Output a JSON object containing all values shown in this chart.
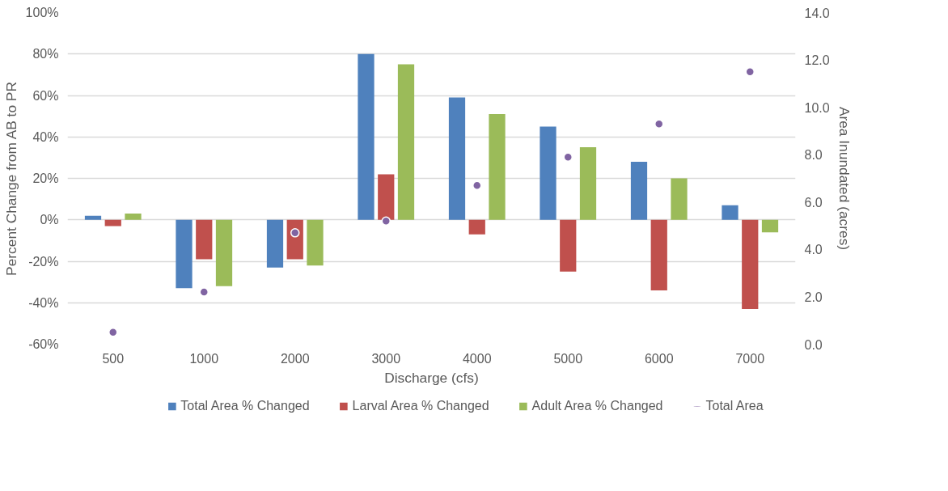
{
  "chart_data": {
    "type": "bar",
    "xlabel": "Discharge (cfs)",
    "ylabel": "Percent Change from AB to PR",
    "y2label": "Area Inundated (acres)",
    "categories": [
      "500",
      "1000",
      "2000",
      "3000",
      "4000",
      "5000",
      "6000",
      "7000"
    ],
    "series": [
      {
        "name": "Total Area % Changed",
        "color": "#4f81bd",
        "values": [
          2,
          -33,
          -23,
          80,
          59,
          45,
          28,
          7
        ]
      },
      {
        "name": "Larval Area % Changed",
        "color": "#c0504d",
        "values": [
          -3,
          -19,
          -19,
          22,
          -7,
          -25,
          -34,
          -43
        ]
      },
      {
        "name": "Adult Area % Changed",
        "color": "#9bbb59",
        "values": [
          3,
          -32,
          -22,
          75,
          51,
          35,
          20,
          -6
        ]
      },
      {
        "name": "Total Area",
        "type": "scatter",
        "axis": "y2",
        "marker": "circle",
        "color": "#8064a2",
        "values": [
          0.5,
          2.2,
          4.7,
          5.2,
          6.7,
          7.9,
          9.3,
          11.5
        ]
      }
    ],
    "ylim": [
      -60,
      100
    ],
    "yticks": [
      {
        "value": -60,
        "label": "-60%"
      },
      {
        "value": -40,
        "label": "-40%"
      },
      {
        "value": -20,
        "label": "-20%"
      },
      {
        "value": 0,
        "label": "0%"
      },
      {
        "value": 20,
        "label": "20%"
      },
      {
        "value": 40,
        "label": "40%"
      },
      {
        "value": 60,
        "label": "60%"
      },
      {
        "value": 80,
        "label": "80%"
      },
      {
        "value": 100,
        "label": "100%"
      }
    ],
    "y2lim": [
      0,
      14
    ],
    "y2ticks": [
      {
        "value": 0,
        "label": "0.0"
      },
      {
        "value": 2,
        "label": "2.0"
      },
      {
        "value": 4,
        "label": "4.0"
      },
      {
        "value": 6,
        "label": "6.0"
      },
      {
        "value": 8,
        "label": "8.0"
      },
      {
        "value": 10,
        "label": "10.0"
      },
      {
        "value": 12,
        "label": "12.0"
      },
      {
        "value": 14,
        "label": "14.0"
      }
    ],
    "grid": "y",
    "legend": "bottom"
  }
}
